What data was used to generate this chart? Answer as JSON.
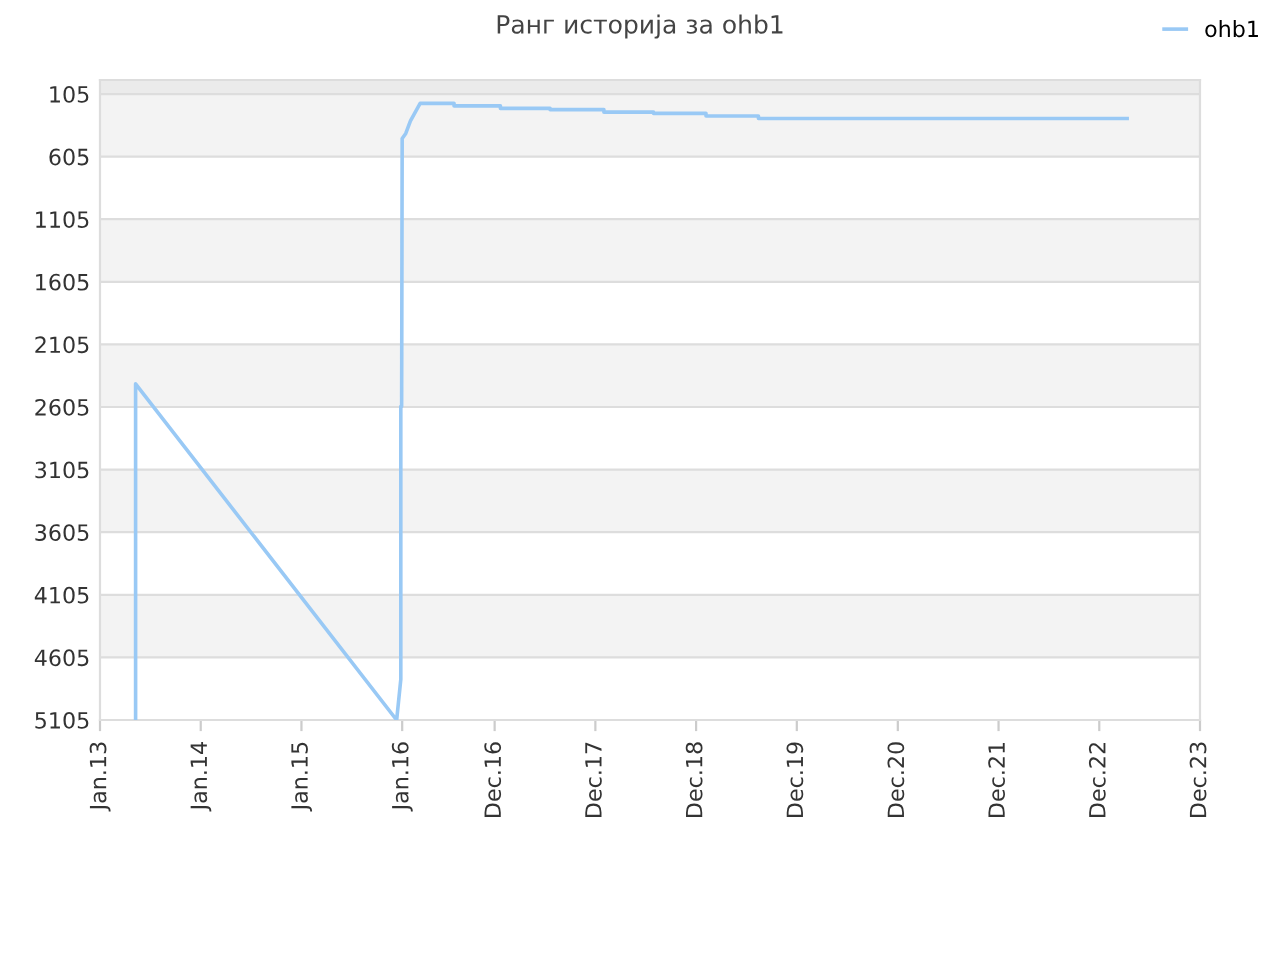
{
  "chart_data": {
    "type": "line",
    "title": "Ранг историја за ohb1",
    "series": [
      {
        "name": "ohb1",
        "color": "#99c9f5",
        "x": [
          "2013-05-10",
          "2013-05-10",
          "2015-12-12",
          "2015-12-27",
          "2015-12-27",
          "2015-12-30",
          "2016-01-01",
          "2016-01-14",
          "2016-01-31",
          "2016-03-06",
          "2016-07-07",
          "2016-07-07",
          "2016-12-22",
          "2016-12-22",
          "2017-06-20",
          "2017-06-20",
          "2018-01-01",
          "2018-01-01",
          "2018-06-30",
          "2018-06-30",
          "2019-01-06",
          "2019-01-06",
          "2019-07-15",
          "2019-07-15",
          "2023-03-12"
        ],
        "values": [
          5105,
          2420,
          5105,
          4780,
          2600,
          2600,
          460,
          420,
          320,
          180,
          180,
          200,
          200,
          220,
          220,
          230,
          230,
          250,
          250,
          260,
          260,
          280,
          280,
          300,
          300
        ]
      }
    ],
    "xlim": [
      "2013-01-01",
      "2023-12-01"
    ],
    "xticks": [
      {
        "value": "2013-01-01",
        "label": "Jan.13"
      },
      {
        "value": "2014-01-01",
        "label": "Jan.14"
      },
      {
        "value": "2015-01-01",
        "label": "Jan.15"
      },
      {
        "value": "2016-01-01",
        "label": "Jan.16"
      },
      {
        "value": "2016-12-01",
        "label": "Dec.16"
      },
      {
        "value": "2017-12-01",
        "label": "Dec.17"
      },
      {
        "value": "2018-12-01",
        "label": "Dec.18"
      },
      {
        "value": "2019-12-01",
        "label": "Dec.19"
      },
      {
        "value": "2020-12-01",
        "label": "Dec.20"
      },
      {
        "value": "2021-12-01",
        "label": "Dec.21"
      },
      {
        "value": "2022-12-01",
        "label": "Dec.22"
      },
      {
        "value": "2023-12-01",
        "label": "Dec.23"
      }
    ],
    "ylim": [
      5105,
      -7
    ],
    "yticks": [
      105,
      605,
      1105,
      1605,
      2105,
      2605,
      3105,
      3605,
      4105,
      4605,
      5105
    ],
    "bands": [
      {
        "axis": "y",
        "from": -7,
        "to": 105,
        "color": "#ebebeb"
      },
      {
        "axis": "y",
        "from": 105,
        "to": 605,
        "color": "#f3f3f3"
      },
      {
        "axis": "y",
        "from": 1105,
        "to": 1605,
        "color": "#f3f3f3"
      },
      {
        "axis": "y",
        "from": 2105,
        "to": 2605,
        "color": "#f3f3f3"
      },
      {
        "axis": "y",
        "from": 3105,
        "to": 3605,
        "color": "#f3f3f3"
      },
      {
        "axis": "y",
        "from": 4105,
        "to": 4605,
        "color": "#f3f3f3"
      }
    ],
    "grid": "y",
    "legend": "top right",
    "marker": "none",
    "line_style": "solid"
  }
}
